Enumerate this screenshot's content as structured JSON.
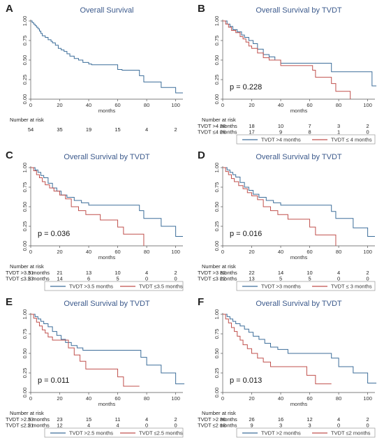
{
  "chart_data": [
    {
      "letter": "A",
      "type": "line",
      "title": "Overall Survival",
      "xlabel": "months",
      "xlim": [
        0,
        105
      ],
      "ylim": [
        0,
        1
      ],
      "xticks": [
        "0",
        "20",
        "40",
        "60",
        "80",
        "100"
      ],
      "yticks": [
        "0.00",
        "0.25",
        "0.50",
        "0.75",
        "1.00"
      ],
      "p_value": "",
      "risk_header": "Number at risk",
      "series": [
        {
          "name": "",
          "color": "#3d6e9a",
          "x": [
            0,
            1,
            2,
            3,
            4,
            5,
            6,
            7,
            8,
            10,
            12,
            14,
            15,
            17,
            19,
            21,
            23,
            25,
            27,
            30,
            33,
            36,
            40,
            42,
            50,
            60,
            63,
            74,
            75,
            78,
            90,
            100,
            105
          ],
          "y": [
            1.0,
            0.98,
            0.96,
            0.94,
            0.92,
            0.9,
            0.87,
            0.84,
            0.81,
            0.79,
            0.76,
            0.74,
            0.72,
            0.69,
            0.65,
            0.63,
            0.61,
            0.58,
            0.55,
            0.52,
            0.5,
            0.47,
            0.45,
            0.44,
            0.44,
            0.38,
            0.37,
            0.37,
            0.3,
            0.22,
            0.15,
            0.08,
            0.08
          ]
        }
      ],
      "risk_table": {
        "rows": [
          {
            "label": "",
            "values": [
              "54",
              "35",
              "19",
              "15",
              "4",
              "2"
            ]
          }
        ]
      },
      "legend": []
    },
    {
      "letter": "B",
      "type": "line",
      "title": "Overall Survival by TVDT",
      "xlabel": "months",
      "xlim": [
        0,
        105
      ],
      "ylim": [
        0,
        1
      ],
      "xticks": [
        "0",
        "20",
        "40",
        "60",
        "80",
        "100"
      ],
      "yticks": [
        "0.00",
        "0.25",
        "0.50",
        "0.75",
        "1.00"
      ],
      "p_value": "p = 0.228",
      "risk_header": "Number at risk",
      "series": [
        {
          "name": "TVDT >4 months",
          "color": "#3d6e9a",
          "x": [
            0,
            3,
            5,
            7,
            10,
            13,
            15,
            18,
            21,
            24,
            28,
            32,
            36,
            40,
            44,
            48,
            60,
            75,
            92,
            103,
            106
          ],
          "y": [
            1.0,
            0.96,
            0.93,
            0.89,
            0.86,
            0.82,
            0.79,
            0.75,
            0.71,
            0.64,
            0.57,
            0.54,
            0.5,
            0.46,
            0.46,
            0.46,
            0.46,
            0.35,
            0.35,
            0.17,
            0.17
          ]
        },
        {
          "name": "TVDT ≤ 4 months",
          "color": "#c0504d",
          "x": [
            0,
            2,
            4,
            6,
            9,
            12,
            14,
            16,
            18,
            20,
            24,
            28,
            32,
            40,
            55,
            62,
            64,
            75,
            78,
            85,
            88
          ],
          "y": [
            1.0,
            0.96,
            0.92,
            0.88,
            0.85,
            0.8,
            0.77,
            0.73,
            0.68,
            0.65,
            0.59,
            0.53,
            0.5,
            0.43,
            0.43,
            0.37,
            0.28,
            0.2,
            0.1,
            0.1,
            0.0
          ]
        }
      ],
      "risk_table": {
        "rows": [
          {
            "label": "TVDT >4 months",
            "values": [
              "28",
              "18",
              "10",
              "7",
              "3",
              "2"
            ]
          },
          {
            "label": "TVDT ≤4 months",
            "values": [
              "26",
              "17",
              "9",
              "8",
              "1",
              "0"
            ]
          }
        ]
      },
      "legend": [
        "TVDT >4 months",
        "TVDT ≤ 4 months"
      ]
    },
    {
      "letter": "C",
      "type": "line",
      "title": "Overall Survival by TVDT",
      "xlabel": "months",
      "xlim": [
        0,
        105
      ],
      "ylim": [
        0,
        1
      ],
      "xticks": [
        "0",
        "20",
        "40",
        "60",
        "80",
        "100"
      ],
      "yticks": [
        "0.00",
        "0.25",
        "0.50",
        "0.75",
        "1.00"
      ],
      "p_value": "p = 0.036",
      "risk_header": "Number at risk",
      "series": [
        {
          "name": "TVDT >3.5 months",
          "color": "#3d6e9a",
          "x": [
            0,
            3,
            5,
            7,
            9,
            12,
            15,
            18,
            21,
            25,
            30,
            35,
            40,
            60,
            75,
            78,
            90,
            100,
            105
          ],
          "y": [
            1.0,
            0.97,
            0.94,
            0.9,
            0.87,
            0.8,
            0.74,
            0.7,
            0.65,
            0.62,
            0.58,
            0.55,
            0.52,
            0.52,
            0.45,
            0.35,
            0.25,
            0.12,
            0.12
          ]
        },
        {
          "name": "TVDT ≤3.5 months",
          "color": "#c0504d",
          "x": [
            0,
            2,
            4,
            6,
            8,
            10,
            13,
            16,
            20,
            24,
            28,
            33,
            38,
            48,
            56,
            60,
            64,
            76,
            78
          ],
          "y": [
            1.0,
            0.96,
            0.91,
            0.87,
            0.82,
            0.78,
            0.74,
            0.7,
            0.65,
            0.6,
            0.5,
            0.45,
            0.4,
            0.33,
            0.33,
            0.24,
            0.15,
            0.15,
            0.0
          ]
        }
      ],
      "risk_table": {
        "rows": [
          {
            "label": "TVDT >3.5 months",
            "values": [
              "31",
              "21",
              "13",
              "10",
              "4",
              "2"
            ]
          },
          {
            "label": "TVDT ≤3.5 months",
            "values": [
              "23",
              "14",
              "6",
              "5",
              "0",
              "0"
            ]
          }
        ]
      },
      "legend": [
        "TVDT >3.5 months",
        "TVDT ≤3.5 months"
      ]
    },
    {
      "letter": "D",
      "type": "line",
      "title": "Overall Survival by TVDT",
      "xlabel": "months",
      "xlim": [
        0,
        105
      ],
      "ylim": [
        0,
        1
      ],
      "xticks": [
        "0",
        "20",
        "40",
        "60",
        "80",
        "100"
      ],
      "yticks": [
        "0.00",
        "0.25",
        "0.50",
        "0.75",
        "1.00"
      ],
      "p_value": "p = 0.016",
      "risk_header": "Number at risk",
      "series": [
        {
          "name": "TVDT >3 months",
          "color": "#3d6e9a",
          "x": [
            0,
            3,
            5,
            7,
            9,
            12,
            15,
            18,
            21,
            25,
            30,
            35,
            40,
            60,
            75,
            78,
            90,
            100,
            105
          ],
          "y": [
            1.0,
            0.97,
            0.94,
            0.91,
            0.88,
            0.81,
            0.75,
            0.71,
            0.66,
            0.62,
            0.58,
            0.55,
            0.52,
            0.52,
            0.44,
            0.35,
            0.23,
            0.12,
            0.12
          ]
        },
        {
          "name": "TVDT ≤ 3 months",
          "color": "#c0504d",
          "x": [
            0,
            2,
            4,
            6,
            8,
            11,
            14,
            17,
            20,
            24,
            28,
            33,
            38,
            45,
            55,
            60,
            64,
            76,
            78
          ],
          "y": [
            1.0,
            0.95,
            0.91,
            0.86,
            0.82,
            0.77,
            0.73,
            0.68,
            0.64,
            0.59,
            0.5,
            0.45,
            0.4,
            0.34,
            0.34,
            0.24,
            0.14,
            0.14,
            0.0
          ]
        }
      ],
      "risk_table": {
        "rows": [
          {
            "label": "TVDT >3 months",
            "values": [
              "32",
              "22",
              "14",
              "10",
              "4",
              "2"
            ]
          },
          {
            "label": "TVDT ≤3 months",
            "values": [
              "22",
              "13",
              "5",
              "5",
              "0",
              "0"
            ]
          }
        ]
      },
      "legend": [
        "TVDT >3 months",
        "TVDT ≤ 3 months"
      ]
    },
    {
      "letter": "E",
      "type": "line",
      "title": "Overall Survival by TVDT",
      "xlabel": "months",
      "xlim": [
        0,
        105
      ],
      "ylim": [
        0,
        1
      ],
      "xticks": [
        "0",
        "20",
        "40",
        "60",
        "80",
        "100"
      ],
      "yticks": [
        "0.00",
        "0.25",
        "0.50",
        "0.75",
        "1.00"
      ],
      "p_value": "p = 0.011",
      "risk_header": "Number at risk",
      "series": [
        {
          "name": "TVDT >2.5 months",
          "color": "#3d6e9a",
          "x": [
            0,
            3,
            5,
            7,
            9,
            12,
            15,
            18,
            21,
            24,
            28,
            32,
            36,
            60,
            76,
            80,
            90,
            100,
            106
          ],
          "y": [
            1.0,
            0.97,
            0.94,
            0.91,
            0.88,
            0.84,
            0.78,
            0.73,
            0.68,
            0.64,
            0.6,
            0.57,
            0.54,
            0.54,
            0.45,
            0.35,
            0.25,
            0.11,
            0.11
          ]
        },
        {
          "name": "TVDT ≤2.5 months",
          "color": "#c0504d",
          "x": [
            0,
            2,
            4,
            6,
            8,
            10,
            12,
            15,
            22,
            26,
            30,
            34,
            38,
            45,
            55,
            60,
            64,
            75
          ],
          "y": [
            1.0,
            0.95,
            0.9,
            0.85,
            0.8,
            0.76,
            0.71,
            0.67,
            0.67,
            0.57,
            0.48,
            0.4,
            0.3,
            0.3,
            0.3,
            0.2,
            0.08,
            0.08
          ]
        }
      ],
      "risk_table": {
        "rows": [
          {
            "label": "TVDT >2.5 months",
            "values": [
              "33",
              "23",
              "15",
              "11",
              "4",
              "2"
            ]
          },
          {
            "label": "TVDT ≤2.5 months",
            "values": [
              "21",
              "12",
              "4",
              "4",
              "0",
              "0"
            ]
          }
        ]
      },
      "legend": [
        "TVDT >2.5 months",
        "TVDT ≤2.5 months"
      ]
    },
    {
      "letter": "F",
      "type": "line",
      "title": "Overall Survival by TVDT",
      "xlabel": "months",
      "xlim": [
        0,
        105
      ],
      "ylim": [
        0,
        1
      ],
      "xticks": [
        "0",
        "20",
        "40",
        "60",
        "80",
        "100"
      ],
      "yticks": [
        "0.00",
        "0.25",
        "0.50",
        "0.75",
        "1.00"
      ],
      "p_value": "p = 0.013",
      "risk_header": "Number at risk",
      "series": [
        {
          "name": "TVDT >2 months",
          "color": "#3d6e9a",
          "x": [
            0,
            3,
            5,
            7,
            9,
            12,
            15,
            18,
            21,
            25,
            29,
            33,
            38,
            45,
            60,
            75,
            80,
            90,
            100,
            106
          ],
          "y": [
            1.0,
            0.97,
            0.94,
            0.91,
            0.88,
            0.85,
            0.81,
            0.77,
            0.72,
            0.68,
            0.63,
            0.58,
            0.55,
            0.5,
            0.5,
            0.44,
            0.33,
            0.25,
            0.12,
            0.12
          ]
        },
        {
          "name": "TVDT ≤2 months",
          "color": "#c0504d",
          "x": [
            0,
            2,
            4,
            6,
            8,
            10,
            12,
            14,
            17,
            20,
            24,
            28,
            33,
            38,
            50,
            58,
            64,
            75
          ],
          "y": [
            1.0,
            0.94,
            0.89,
            0.83,
            0.78,
            0.72,
            0.67,
            0.61,
            0.56,
            0.5,
            0.44,
            0.39,
            0.33,
            0.33,
            0.33,
            0.22,
            0.11,
            0.11
          ]
        }
      ],
      "risk_table": {
        "rows": [
          {
            "label": "TVDT >2 months",
            "values": [
              "36",
              "26",
              "16",
              "12",
              "4",
              "2"
            ]
          },
          {
            "label": "TVDT ≤2 months",
            "values": [
              "18",
              "9",
              "3",
              "3",
              "0",
              "0"
            ]
          }
        ]
      },
      "legend": [
        "TVDT >2 months",
        "TVDT ≤2 months"
      ]
    }
  ]
}
